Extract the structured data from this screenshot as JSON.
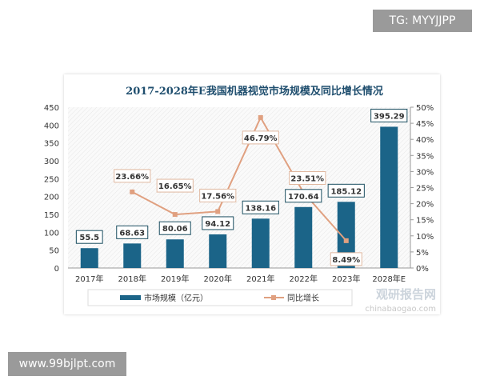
{
  "watermarks": {
    "top": "TG: MYYJJPP",
    "bottom": "www.99bjlpt.com",
    "chart_logo": "观研报告网",
    "chart_logo_url": "chinabaogao.com"
  },
  "chart_data": {
    "type": "bar+line",
    "title": "2017-2028年E我国机器视觉市场规模及同比增长情况",
    "categories": [
      "2017年",
      "2018年",
      "2019年",
      "2020年",
      "2021年",
      "2022年",
      "2023年",
      "2028年E"
    ],
    "series": [
      {
        "name": "市场规模（亿元）",
        "type": "bar",
        "axis": "left",
        "color": "#1b6488",
        "values": [
          55.5,
          68.63,
          80.06,
          94.12,
          138.16,
          170.64,
          185.12,
          395.29
        ],
        "labels": [
          "55.5",
          "68.63",
          "80.06",
          "94.12",
          "138.16",
          "170.64",
          "185.12",
          "395.29"
        ]
      },
      {
        "name": "同比增长",
        "type": "line",
        "axis": "right",
        "color": "#e0a080",
        "values": [
          null,
          23.66,
          16.65,
          17.56,
          46.79,
          23.51,
          8.49,
          null
        ],
        "labels": [
          "",
          "23.66%",
          "16.65%",
          "17.56%",
          "46.79%",
          "23.51%",
          "8.49%",
          ""
        ]
      }
    ],
    "y_left": {
      "range": [
        0,
        450
      ],
      "ticks": [
        "0",
        "50",
        "100",
        "150",
        "200",
        "250",
        "300",
        "350",
        "400",
        "450"
      ]
    },
    "y_right": {
      "range": [
        0,
        50
      ],
      "ticks": [
        "0%",
        "5%",
        "10%",
        "15%",
        "20%",
        "25%",
        "30%",
        "35%",
        "40%",
        "45%",
        "50%"
      ]
    },
    "legend": "bottom"
  }
}
